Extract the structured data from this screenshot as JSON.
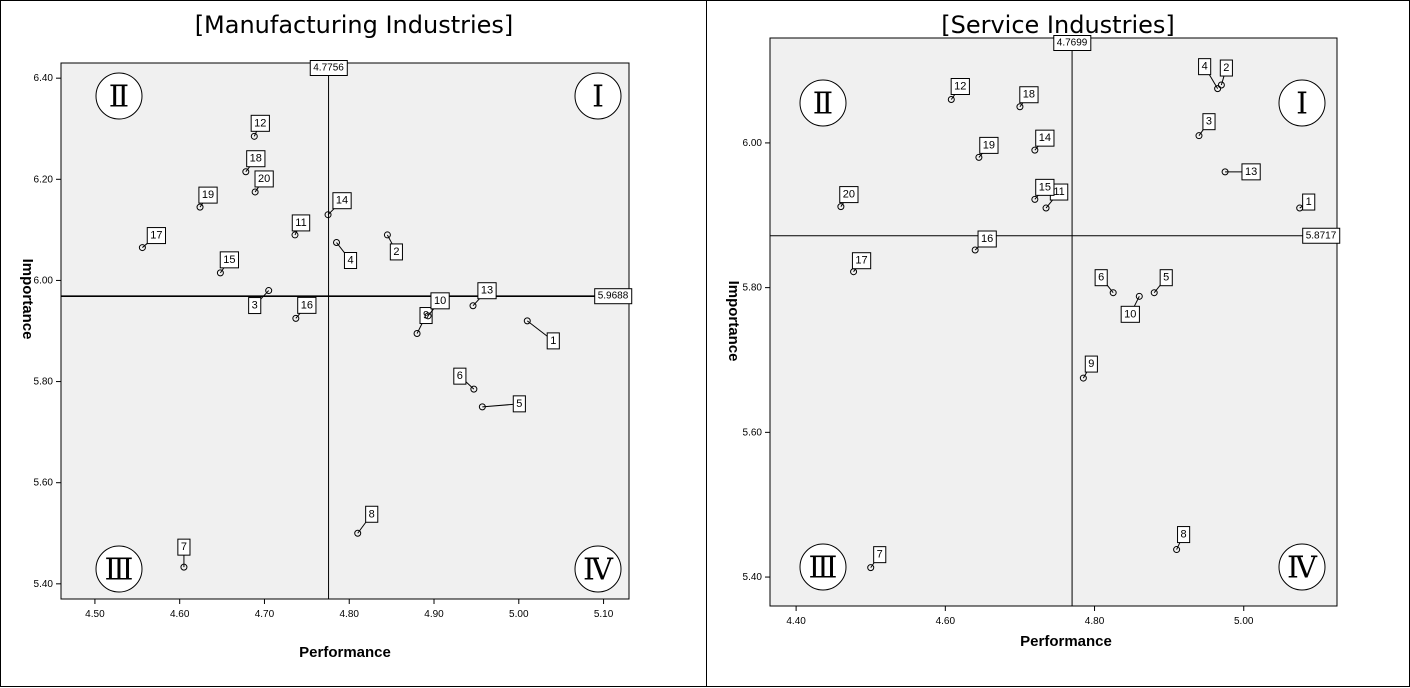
{
  "colors": {
    "plot_bg": "#f0f0f0",
    "ink": "#000000",
    "page": "#ffffff"
  },
  "chart_data": [
    {
      "type": "scatter",
      "title": "[Manufacturing Industries]",
      "xlabel": "Performance",
      "ylabel": "Importance",
      "xlim": [
        4.46,
        5.13
      ],
      "ylim": [
        5.37,
        6.43
      ],
      "xticks": [
        "4.50",
        "4.60",
        "4.70",
        "4.80",
        "4.90",
        "5.00",
        "5.10"
      ],
      "yticks": [
        "5.40",
        "5.60",
        "5.80",
        "6.00",
        "6.20",
        "6.40"
      ],
      "grid": false,
      "reference_lines": {
        "x": 4.7756,
        "x_label": "4.7756",
        "y": 5.9688,
        "y_label": "5.9688"
      },
      "quadrants": [
        "I",
        "II",
        "III",
        "IV"
      ],
      "points": [
        {
          "label": "1",
          "x": 5.01,
          "y": 5.92
        },
        {
          "label": "2",
          "x": 4.845,
          "y": 6.09
        },
        {
          "label": "3",
          "x": 4.705,
          "y": 5.98
        },
        {
          "label": "4",
          "x": 4.785,
          "y": 6.075
        },
        {
          "label": "5",
          "x": 4.957,
          "y": 5.75
        },
        {
          "label": "6",
          "x": 4.947,
          "y": 5.785
        },
        {
          "label": "7",
          "x": 4.605,
          "y": 5.433
        },
        {
          "label": "8",
          "x": 4.81,
          "y": 5.5
        },
        {
          "label": "9",
          "x": 4.88,
          "y": 5.895
        },
        {
          "label": "10",
          "x": 4.893,
          "y": 5.93
        },
        {
          "label": "11",
          "x": 4.736,
          "y": 6.09
        },
        {
          "label": "12",
          "x": 4.688,
          "y": 6.285
        },
        {
          "label": "13",
          "x": 4.946,
          "y": 5.95
        },
        {
          "label": "14",
          "x": 4.775,
          "y": 6.13
        },
        {
          "label": "15",
          "x": 4.648,
          "y": 6.015
        },
        {
          "label": "16",
          "x": 4.737,
          "y": 5.925
        },
        {
          "label": "17",
          "x": 4.556,
          "y": 6.065
        },
        {
          "label": "18",
          "x": 4.678,
          "y": 6.215
        },
        {
          "label": "19",
          "x": 4.624,
          "y": 6.145
        },
        {
          "label": "20",
          "x": 4.689,
          "y": 6.175
        }
      ]
    },
    {
      "type": "scatter",
      "title": "[Service Industries]",
      "xlabel": "Performance",
      "ylabel": "Importance",
      "xlim": [
        4.365,
        5.125
      ],
      "ylim": [
        5.36,
        6.145
      ],
      "xticks": [
        "4.40",
        "4.60",
        "4.80",
        "5.00"
      ],
      "yticks": [
        "5.40",
        "5.60",
        "5.80",
        "6.00"
      ],
      "grid": false,
      "reference_lines": {
        "x": 4.7699,
        "x_label": "4.7699",
        "y": 5.8717,
        "y_label": "5.8717"
      },
      "quadrants": [
        "I",
        "II",
        "III",
        "IV"
      ],
      "points": [
        {
          "label": "1",
          "x": 5.075,
          "y": 5.91
        },
        {
          "label": "2",
          "x": 4.97,
          "y": 6.08
        },
        {
          "label": "3",
          "x": 4.94,
          "y": 6.01
        },
        {
          "label": "4",
          "x": 4.965,
          "y": 6.075
        },
        {
          "label": "5",
          "x": 4.88,
          "y": 5.793
        },
        {
          "label": "6",
          "x": 4.825,
          "y": 5.793
        },
        {
          "label": "7",
          "x": 4.5,
          "y": 5.413
        },
        {
          "label": "8",
          "x": 4.91,
          "y": 5.438
        },
        {
          "label": "9",
          "x": 4.785,
          "y": 5.675
        },
        {
          "label": "10",
          "x": 4.86,
          "y": 5.788
        },
        {
          "label": "11",
          "x": 4.735,
          "y": 5.91
        },
        {
          "label": "12",
          "x": 4.608,
          "y": 6.06
        },
        {
          "label": "13",
          "x": 4.975,
          "y": 5.96
        },
        {
          "label": "14",
          "x": 4.72,
          "y": 5.99
        },
        {
          "label": "15",
          "x": 4.72,
          "y": 5.922
        },
        {
          "label": "16",
          "x": 4.64,
          "y": 5.852
        },
        {
          "label": "17",
          "x": 4.477,
          "y": 5.822
        },
        {
          "label": "18",
          "x": 4.7,
          "y": 6.05
        },
        {
          "label": "19",
          "x": 4.645,
          "y": 5.98
        },
        {
          "label": "20",
          "x": 4.46,
          "y": 5.912
        }
      ]
    }
  ]
}
